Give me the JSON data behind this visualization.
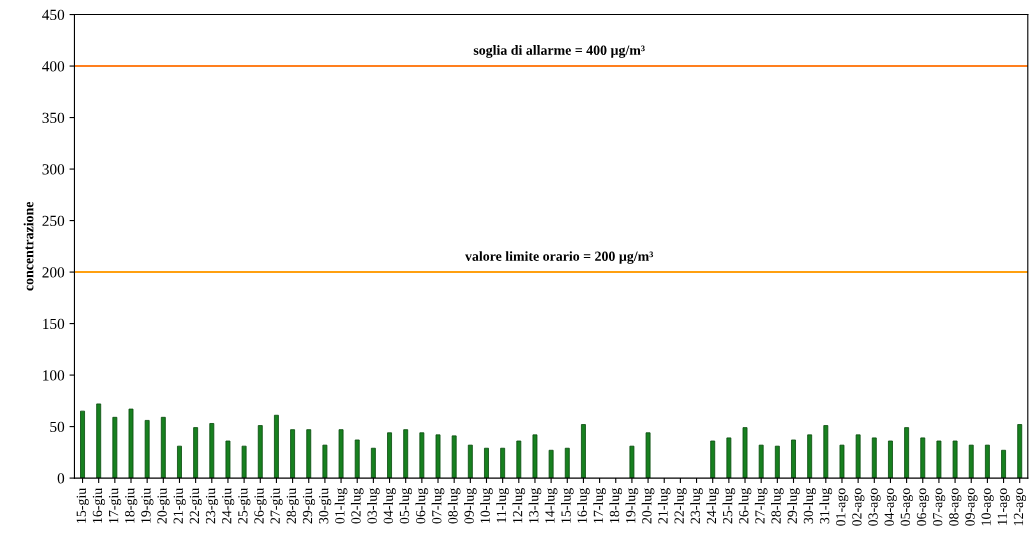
{
  "chart_data": {
    "type": "bar",
    "ylabel": "concentrazione",
    "categories": [
      "15-giu",
      "16-giu",
      "17-giu",
      "18-giu",
      "19-giu",
      "20-giu",
      "21-giu",
      "22-giu",
      "23-giu",
      "24-giu",
      "25-giu",
      "26-giu",
      "27-giu",
      "28-giu",
      "29-giu",
      "30-giu",
      "01-lug",
      "02-lug",
      "03-lug",
      "04-lug",
      "05-lug",
      "06-lug",
      "07-lug",
      "08-lug",
      "09-lug",
      "10-lug",
      "11-lug",
      "12-lug",
      "13-lug",
      "14-lug",
      "15-lug",
      "16-lug",
      "17-lug",
      "18-lug",
      "19-lug",
      "20-lug",
      "21-lug",
      "22-lug",
      "23-lug",
      "24-lug",
      "25-lug",
      "26-lug",
      "27-lug",
      "28-lug",
      "29-lug",
      "30-lug",
      "31-lug",
      "01-ago",
      "02-ago",
      "03-ago",
      "04-ago",
      "05-ago",
      "06-ago",
      "07-ago",
      "08-ago",
      "09-ago",
      "10-ago",
      "11-ago",
      "12-ago"
    ],
    "values": [
      65,
      72,
      59,
      67,
      56,
      59,
      31,
      49,
      53,
      36,
      31,
      51,
      61,
      47,
      47,
      32,
      47,
      37,
      29,
      44,
      47,
      44,
      42,
      41,
      32,
      29,
      29,
      36,
      42,
      27,
      29,
      52,
      null,
      null,
      31,
      44,
      null,
      null,
      null,
      36,
      39,
      49,
      32,
      31,
      37,
      42,
      51,
      32,
      42,
      39,
      36,
      49,
      39,
      36,
      36,
      32,
      32,
      27,
      52
    ],
    "color": "#17801f",
    "ylim": [
      0,
      450
    ],
    "yticks": [
      0,
      50,
      100,
      150,
      200,
      250,
      300,
      350,
      400,
      450
    ],
    "ref_lines": [
      {
        "axis": "y",
        "value": 400,
        "label": "soglia di allarme = 400 µg/m³",
        "color": "#ff7f1e"
      },
      {
        "axis": "y",
        "value": 200,
        "label": "valore limite orario = 200 µg/m³",
        "color": "#ffa010"
      }
    ],
    "grid": false,
    "legend": false
  }
}
